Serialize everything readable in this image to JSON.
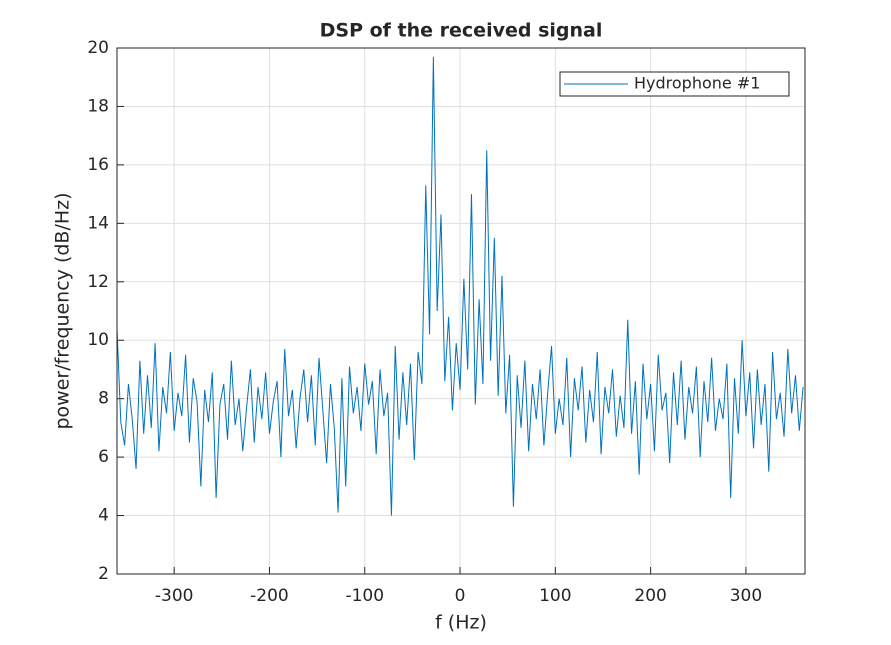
{
  "chart_data": {
    "type": "line",
    "title": "DSP of the received signal",
    "xlabel": "f (Hz)",
    "ylabel": "power/frequency (dB/Hz)",
    "xlim": [
      -360,
      362
    ],
    "ylim": [
      2,
      20
    ],
    "xticks": [
      -300,
      -200,
      -100,
      0,
      100,
      200,
      300
    ],
    "yticks": [
      2,
      4,
      6,
      8,
      10,
      12,
      14,
      16,
      18,
      20
    ],
    "grid": true,
    "legend": "northeast",
    "x": [
      -360,
      -356,
      -352,
      -348,
      -344,
      -340,
      -336,
      -332,
      -328,
      -324,
      -320,
      -316,
      -312,
      -308,
      -304,
      -300,
      -296,
      -292,
      -288,
      -284,
      -280,
      -276,
      -272,
      -268,
      -264,
      -260,
      -256,
      -252,
      -248,
      -244,
      -240,
      -236,
      -232,
      -228,
      -224,
      -220,
      -216,
      -212,
      -208,
      -204,
      -200,
      -196,
      -192,
      -188,
      -184,
      -180,
      -176,
      -172,
      -168,
      -164,
      -160,
      -156,
      -152,
      -148,
      -144,
      -140,
      -136,
      -132,
      -128,
      -124,
      -120,
      -116,
      -112,
      -108,
      -104,
      -100,
      -96,
      -92,
      -88,
      -84,
      -80,
      -76,
      -72,
      -68,
      -64,
      -60,
      -56,
      -52,
      -48,
      -44,
      -40,
      -36,
      -32,
      -28,
      -24,
      -20,
      -16,
      -12,
      -8,
      -4,
      0,
      4,
      8,
      12,
      16,
      20,
      24,
      28,
      32,
      36,
      40,
      44,
      48,
      52,
      56,
      60,
      64,
      68,
      72,
      76,
      80,
      84,
      88,
      92,
      96,
      100,
      104,
      108,
      112,
      116,
      120,
      124,
      128,
      132,
      136,
      140,
      144,
      148,
      152,
      156,
      160,
      164,
      168,
      172,
      176,
      180,
      184,
      188,
      192,
      196,
      200,
      204,
      208,
      212,
      216,
      220,
      224,
      228,
      232,
      236,
      240,
      244,
      248,
      252,
      256,
      260,
      264,
      268,
      272,
      276,
      280,
      284,
      288,
      292,
      296,
      300,
      304,
      308,
      312,
      316,
      320,
      324,
      328,
      332,
      336,
      340,
      344,
      348,
      352,
      356,
      360
    ],
    "series": [
      {
        "name": "Hydrophone #1",
        "color": "#0072bd",
        "values": [
          10.4,
          7.2,
          6.4,
          8.5,
          7.3,
          5.6,
          9.3,
          6.8,
          8.8,
          7.0,
          9.9,
          6.2,
          8.4,
          7.5,
          9.6,
          6.9,
          8.2,
          7.4,
          9.5,
          6.5,
          8.7,
          7.9,
          5.0,
          8.3,
          7.2,
          8.9,
          4.6,
          7.8,
          8.5,
          6.6,
          9.3,
          7.1,
          8.0,
          6.2,
          7.7,
          9.0,
          6.5,
          8.4,
          7.3,
          8.9,
          6.8,
          7.9,
          8.6,
          6.0,
          9.7,
          7.4,
          8.3,
          6.3,
          8.0,
          9.0,
          7.2,
          8.8,
          6.4,
          9.4,
          7.6,
          5.8,
          8.5,
          7.0,
          4.1,
          8.7,
          5.0,
          9.1,
          7.5,
          8.4,
          6.9,
          9.2,
          7.8,
          8.6,
          6.1,
          9.0,
          7.4,
          8.2,
          4.0,
          9.8,
          6.6,
          8.9,
          7.1,
          9.2,
          5.9,
          9.6,
          8.5,
          15.3,
          10.2,
          19.7,
          11.0,
          14.3,
          8.6,
          10.8,
          7.6,
          9.9,
          8.3,
          12.1,
          9.0,
          15.0,
          7.8,
          11.4,
          8.5,
          16.5,
          9.3,
          13.5,
          8.1,
          12.2,
          7.5,
          9.5,
          4.3,
          8.8,
          7.0,
          9.3,
          6.2,
          8.5,
          7.3,
          9.0,
          6.4,
          8.2,
          9.8,
          6.8,
          8.0,
          7.1,
          9.4,
          6.0,
          8.7,
          7.6,
          9.1,
          6.5,
          8.3,
          7.2,
          9.6,
          6.1,
          8.4,
          7.5,
          9.0,
          6.7,
          8.1,
          7.0,
          10.7,
          6.8,
          8.6,
          5.4,
          9.2,
          7.3,
          8.5,
          6.2,
          9.5,
          7.6,
          8.2,
          5.8,
          8.9,
          7.1,
          9.3,
          6.6,
          8.4,
          7.5,
          9.1,
          6.0,
          8.6,
          7.2,
          9.4,
          6.9,
          8.0,
          7.3,
          9.2,
          4.6,
          8.7,
          6.8,
          10.0,
          7.4,
          8.9,
          6.3,
          9.0,
          7.1,
          8.5,
          5.5,
          9.6,
          7.3,
          8.2,
          6.7,
          9.7,
          7.5,
          8.8,
          6.9,
          8.4
        ]
      }
    ]
  }
}
